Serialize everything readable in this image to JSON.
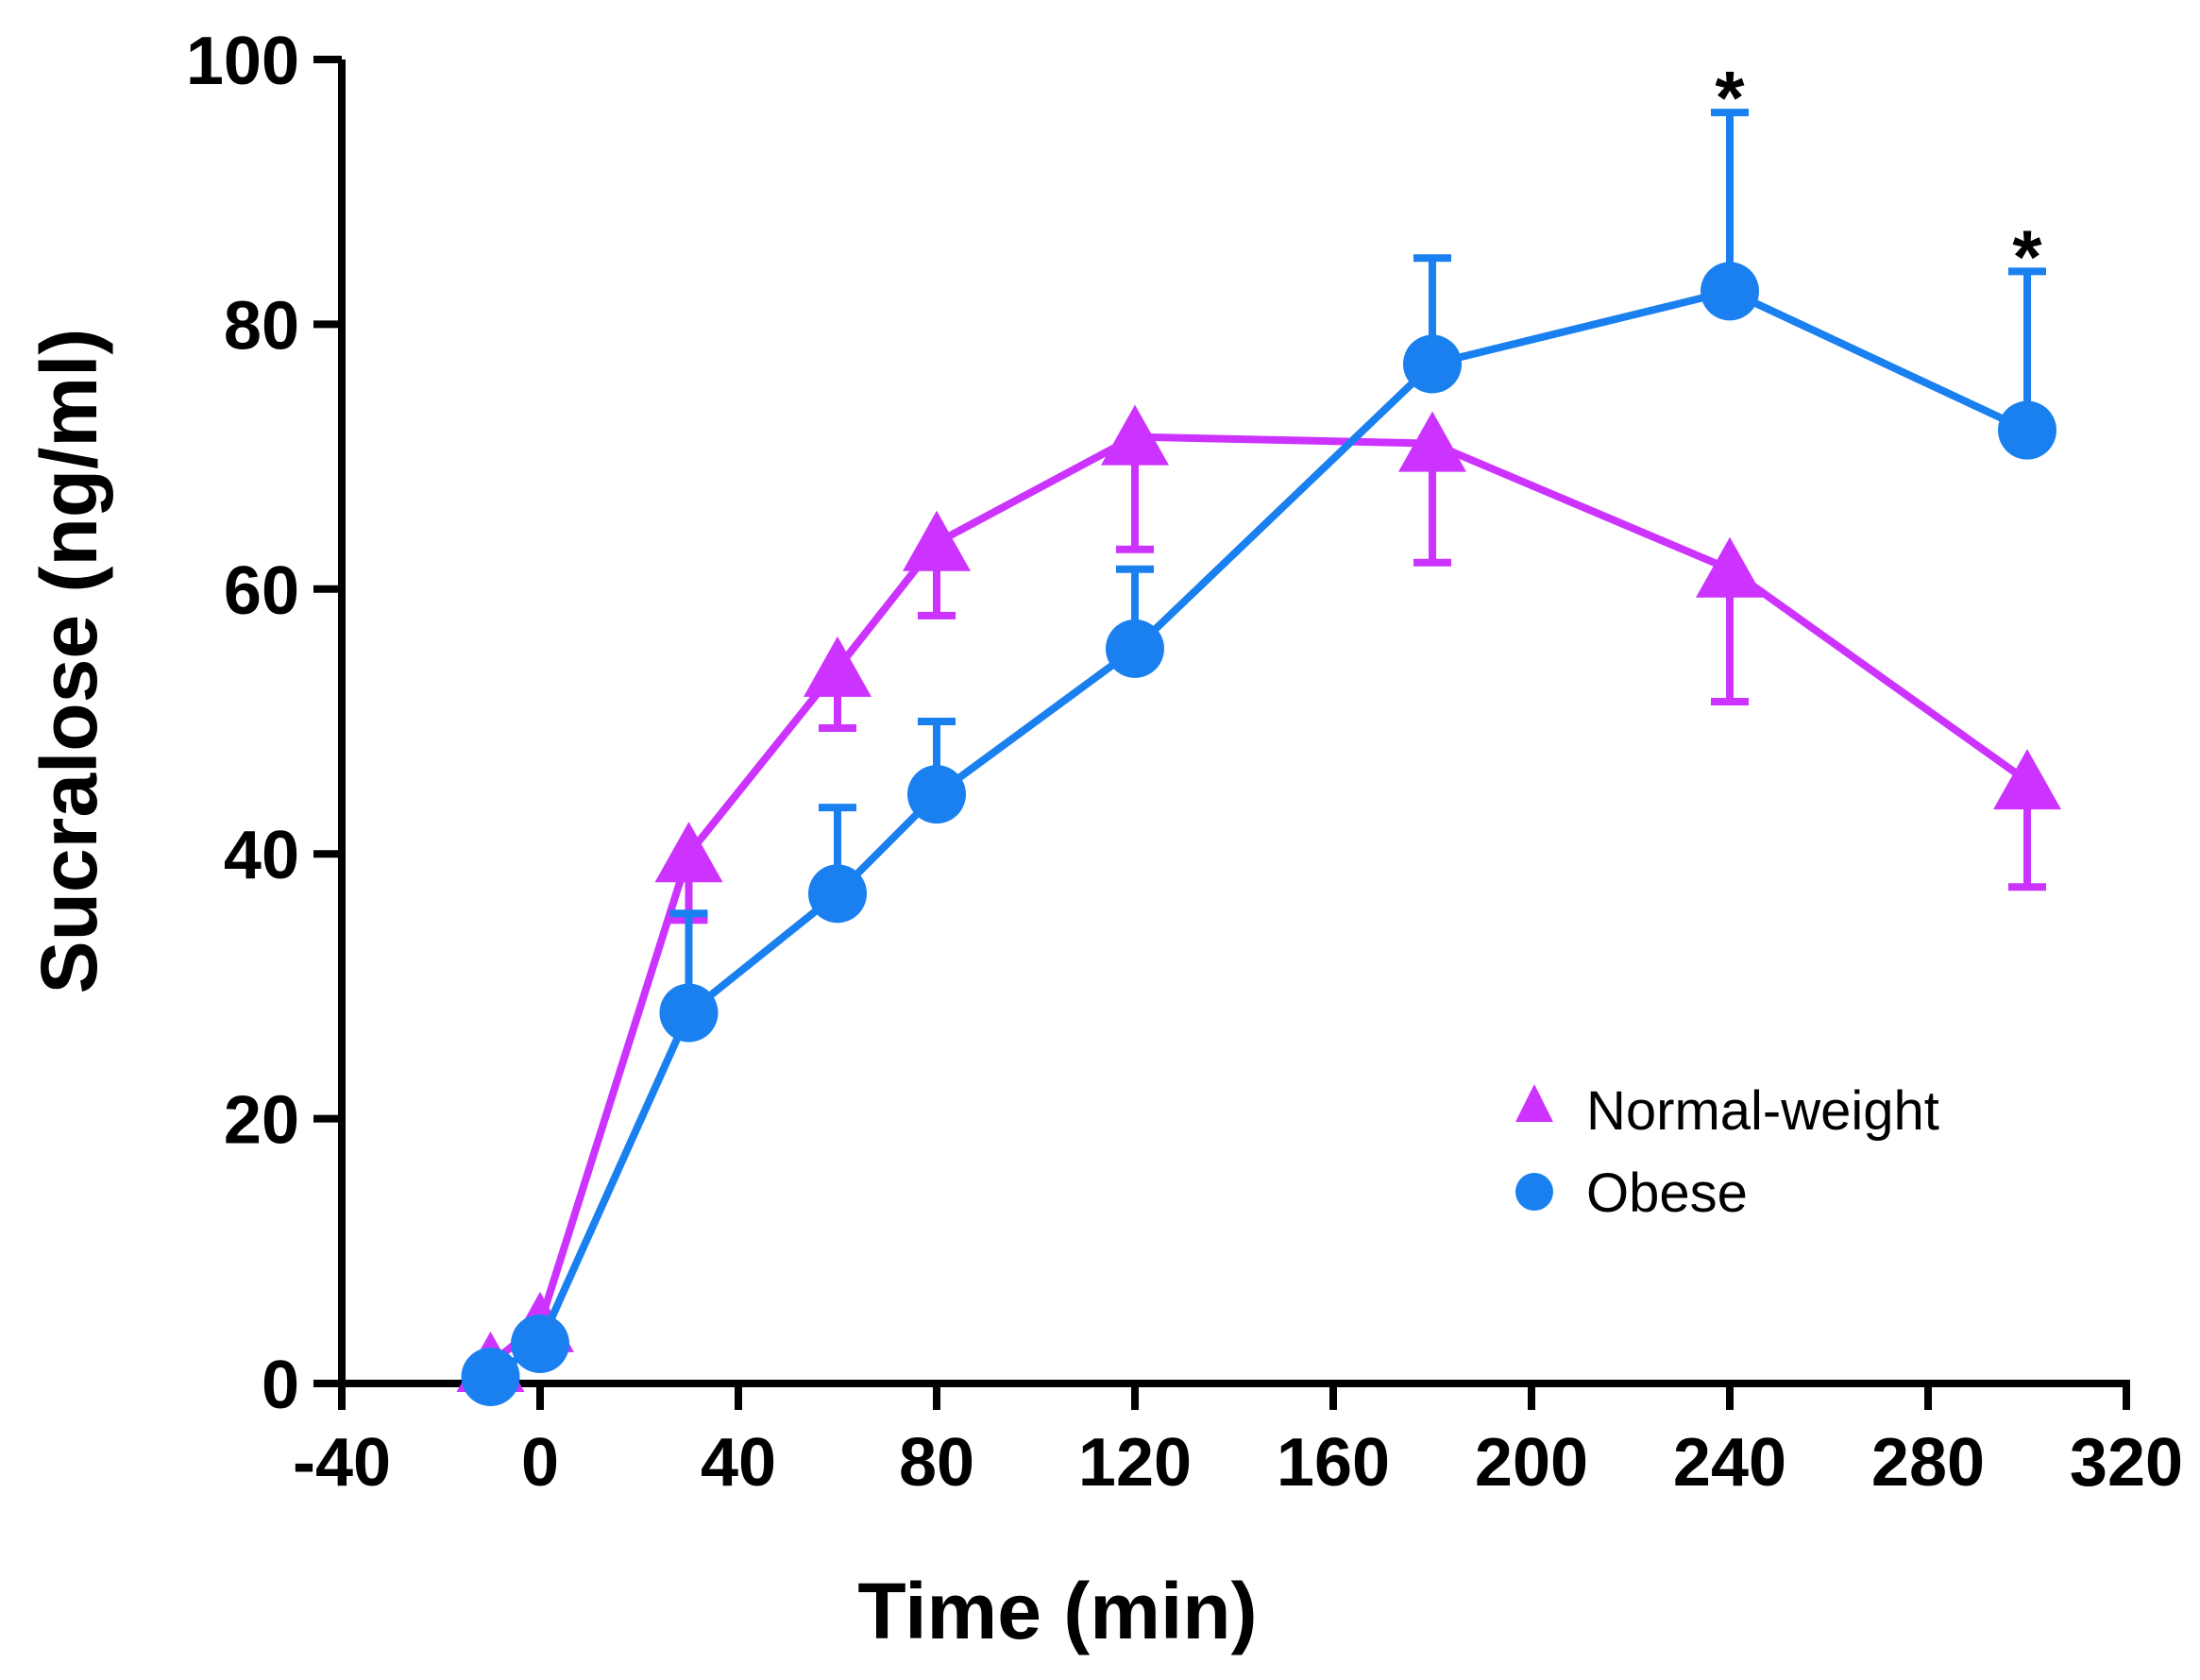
{
  "chart_data": {
    "type": "line",
    "title": "",
    "xlabel": "Time (min)",
    "ylabel": "Sucralose (ng/ml)",
    "xlim": [
      -40,
      320
    ],
    "ylim": [
      0,
      100
    ],
    "xticks": [
      -40,
      0,
      40,
      80,
      120,
      160,
      200,
      240,
      280,
      320
    ],
    "yticks": [
      0,
      20,
      40,
      60,
      80,
      100
    ],
    "x_tick_labels": [
      "-40",
      "0",
      "40",
      "80",
      "120",
      "160",
      "200",
      "240",
      "280",
      "320"
    ],
    "y_tick_labels": [
      "0",
      "20",
      "40",
      "60",
      "80",
      "100"
    ],
    "legend_position": "bottom-right",
    "series": [
      {
        "name": "Normal-weight",
        "marker": "triangle",
        "color": "#CC33FF",
        "error_direction": "down",
        "x": [
          -10,
          0,
          30,
          60,
          80,
          120,
          180,
          240,
          300
        ],
        "y": [
          1.5,
          4.5,
          40,
          54,
          63.5,
          71.5,
          71,
          61.5,
          45.5
        ],
        "error": [
          0,
          0,
          5,
          4.5,
          5.5,
          8.5,
          9,
          10,
          8
        ]
      },
      {
        "name": "Obese",
        "marker": "circle",
        "color": "#1A80F0",
        "error_direction": "up",
        "x": [
          -10,
          0,
          30,
          60,
          80,
          120,
          180,
          240,
          300
        ],
        "y": [
          0.5,
          3,
          28,
          37,
          44.5,
          55.5,
          77,
          82.5,
          72
        ],
        "error": [
          0,
          0,
          7.5,
          6.5,
          5.5,
          6,
          8,
          13.5,
          12
        ]
      }
    ],
    "annotations": [
      {
        "text": "*",
        "x": 240,
        "y": 98
      },
      {
        "text": "*",
        "x": 300,
        "y": 86
      }
    ]
  }
}
